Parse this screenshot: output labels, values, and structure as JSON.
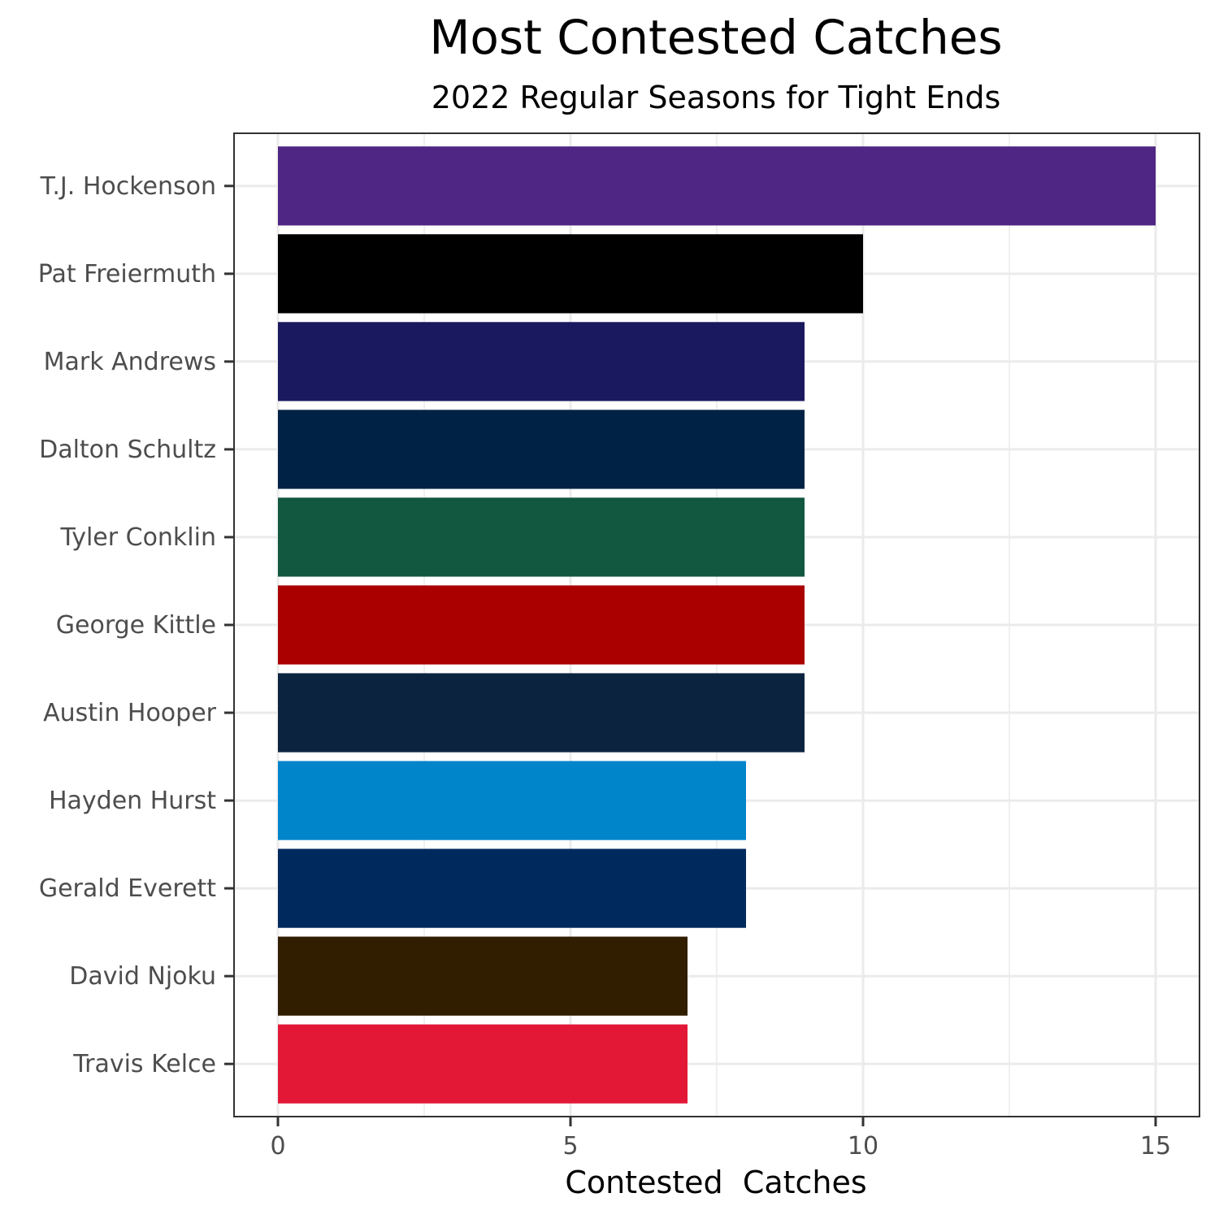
{
  "chart_data": {
    "type": "bar",
    "orientation": "horizontal",
    "title": "Most Contested Catches",
    "subtitle": "2022 Regular Seasons for Tight Ends",
    "xlabel": "Contested  Catches",
    "ylabel": "",
    "xlim": [
      -0.75,
      15.75
    ],
    "xticks": [
      "0",
      "5",
      "10",
      "15"
    ],
    "grid": true,
    "legend": "none",
    "categories": [
      "T.J. Hockenson",
      "Pat Freiermuth",
      "Mark Andrews",
      "Dalton Schultz",
      "Tyler Conklin",
      "George Kittle",
      "Austin Hooper",
      "Hayden Hurst",
      "Gerald Everett",
      "David Njoku",
      "Travis Kelce"
    ],
    "values": [
      15,
      10,
      9,
      9,
      9,
      9,
      9,
      8,
      8,
      7,
      7
    ],
    "colors": [
      "#4F2683",
      "#000000",
      "#1A195F",
      "#002244",
      "#125740",
      "#AA0000",
      "#0C2340",
      "#0085CA",
      "#002A5E",
      "#311D00",
      "#E31837"
    ]
  }
}
